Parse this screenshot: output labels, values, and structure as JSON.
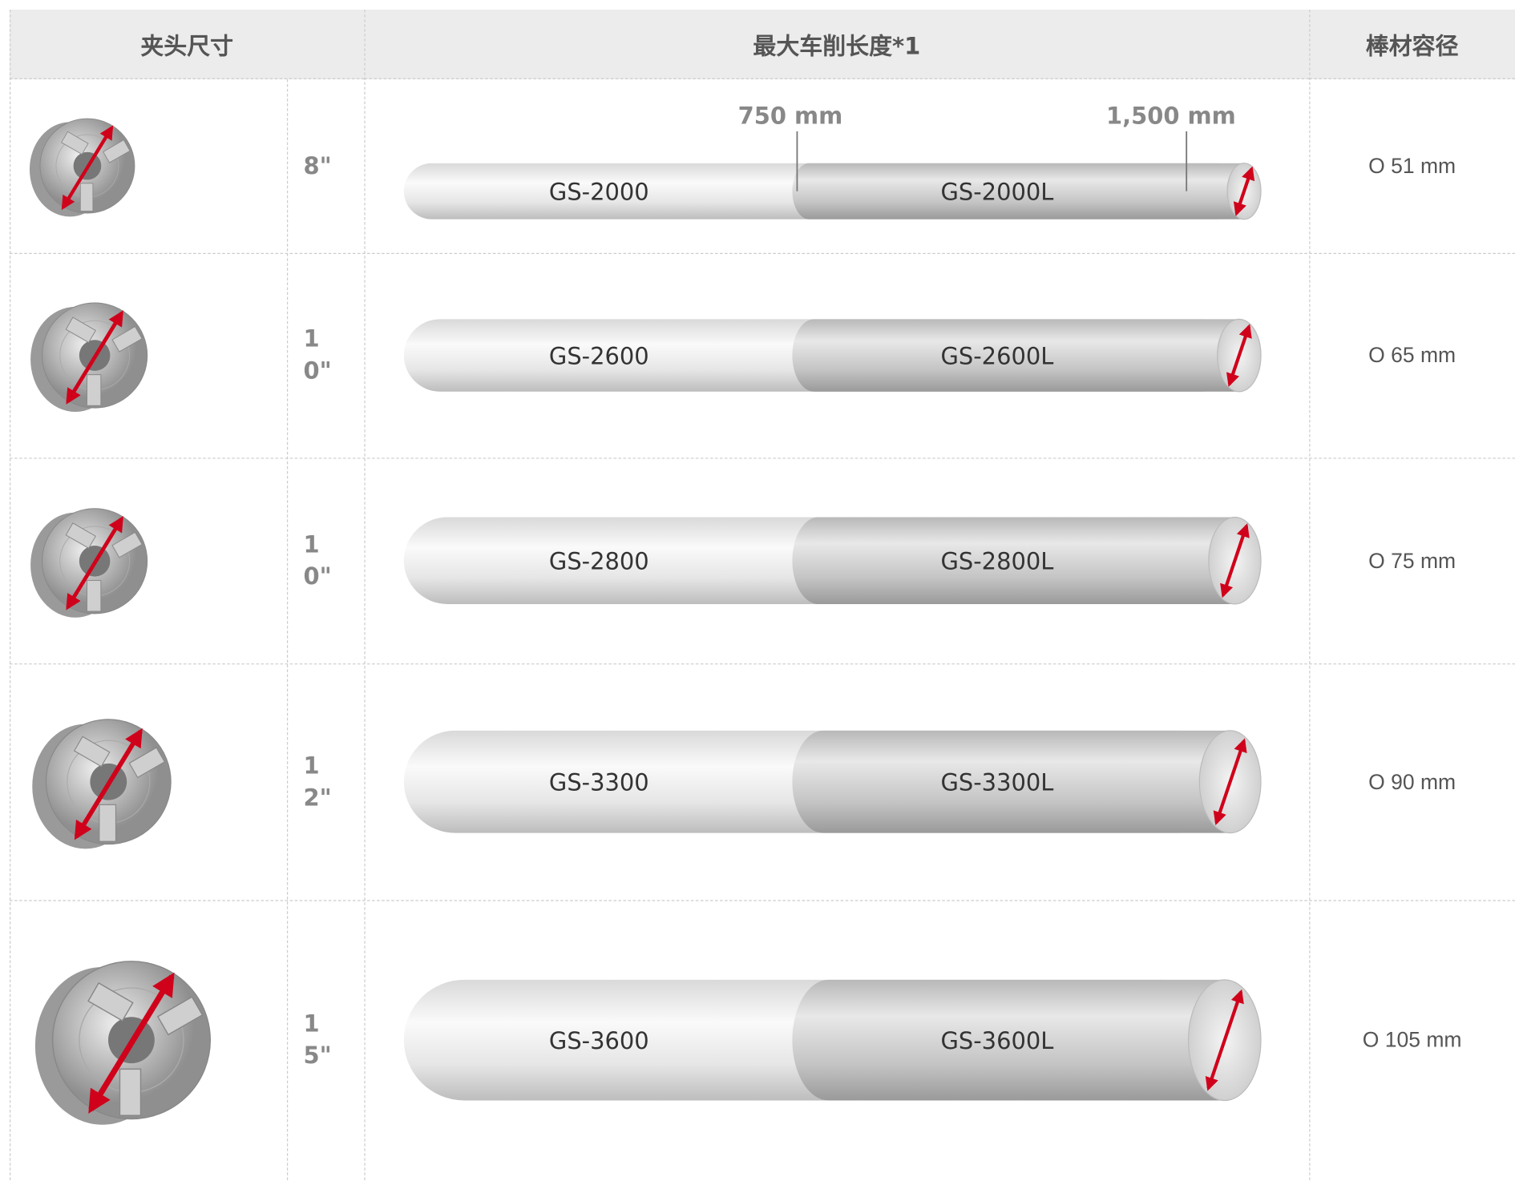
{
  "header": {
    "columns": [
      "夹头尺寸",
      "最大车削长度*1",
      "棒材容径"
    ]
  },
  "markers": [
    "750 mm",
    "1,500 mm"
  ],
  "rows": [
    {
      "chuck_size": "8\"",
      "models": [
        "GS-2000",
        "GS-2000L"
      ],
      "bar_capacity": "O 51 mm"
    },
    {
      "chuck_size": "10\"",
      "models": [
        "GS-2600",
        "GS-2600L"
      ],
      "bar_capacity": "O 65 mm"
    },
    {
      "chuck_size": "10\"",
      "models": [
        "GS-2800",
        "GS-2800L"
      ],
      "bar_capacity": "O 75 mm"
    },
    {
      "chuck_size": "12\"",
      "models": [
        "GS-3300",
        "GS-3300L"
      ],
      "bar_capacity": "O 90 mm"
    },
    {
      "chuck_size": "15\"",
      "models": [
        "GS-3600",
        "GS-3600L"
      ],
      "bar_capacity": "O 105 mm"
    }
  ]
}
